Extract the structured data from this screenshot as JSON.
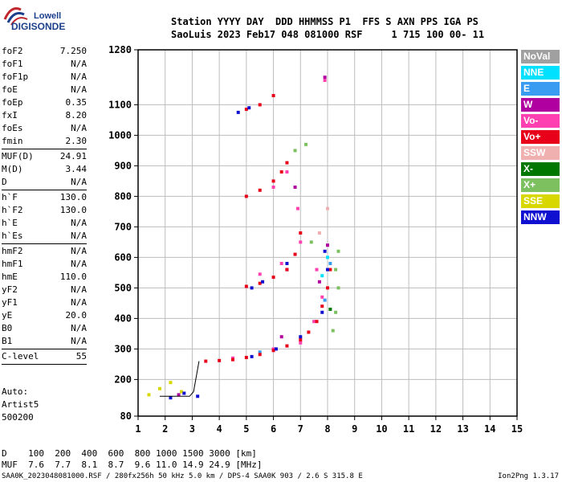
{
  "logo": {
    "line1": "Lowell",
    "line2": "DIGISONDE"
  },
  "header": {
    "line1": "Station YYYY DAY  DDD HHMMSS P1  FFS S AXN PPS IGA PS",
    "line2": "SaoLuis 2023 Feb17 048 081000 RSF     1 715 100 00- 11"
  },
  "params": [
    {
      "k": "foF2",
      "v": "7.250"
    },
    {
      "k": "foF1",
      "v": "N/A"
    },
    {
      "k": "foF1p",
      "v": "N/A"
    },
    {
      "k": "foE",
      "v": "N/A"
    },
    {
      "k": "foEp",
      "v": "0.35"
    },
    {
      "k": "fxI",
      "v": "8.20"
    },
    {
      "k": "foEs",
      "v": "N/A"
    },
    {
      "k": "fmin",
      "v": "2.30"
    },
    {
      "sep": true
    },
    {
      "k": "MUF(D)",
      "v": "24.91"
    },
    {
      "k": "M(D)",
      "v": "3.44"
    },
    {
      "k": "D",
      "v": "N/A"
    },
    {
      "sep": true
    },
    {
      "k": "h`F",
      "v": "130.0"
    },
    {
      "k": "h`F2",
      "v": "130.0"
    },
    {
      "k": "h`E",
      "v": "N/A"
    },
    {
      "k": "h`Es",
      "v": "N/A"
    },
    {
      "sep": true
    },
    {
      "k": "hmF2",
      "v": "N/A"
    },
    {
      "k": "hmF1",
      "v": "N/A"
    },
    {
      "k": "hmE",
      "v": "110.0"
    },
    {
      "k": "yF2",
      "v": "N/A"
    },
    {
      "k": "yF1",
      "v": "N/A"
    },
    {
      "k": "yE",
      "v": "20.0"
    },
    {
      "k": "B0",
      "v": "N/A"
    },
    {
      "k": "B1",
      "v": "N/A"
    },
    {
      "sep": true
    },
    {
      "k": "C-level",
      "v": "55"
    },
    {
      "sep": true
    }
  ],
  "auto": {
    "line1": "Auto:",
    "line2": "Artist5",
    "line3": "500200"
  },
  "legend": [
    {
      "label": "NoVal",
      "color": "#a0a0a0"
    },
    {
      "label": "NNE",
      "color": "#00e0ff"
    },
    {
      "label": "E",
      "color": "#3a9cf0"
    },
    {
      "label": "W",
      "color": "#b000a0"
    },
    {
      "label": "Vo-",
      "color": "#ff40b0"
    },
    {
      "label": "Vo+",
      "color": "#e8001a"
    },
    {
      "label": "SSW",
      "color": "#f0b0b0"
    },
    {
      "label": "X-",
      "color": "#007800"
    },
    {
      "label": "X+",
      "color": "#7cc060"
    },
    {
      "label": "SSE",
      "color": "#d8d800"
    },
    {
      "label": "NNW",
      "color": "#1010d0"
    }
  ],
  "muf": {
    "line1": "D    100  200  400  600  800 1000 1500 3000 [km]",
    "line2": "MUF  7.6  7.7  8.1  8.7  9.6 11.0 14.9 24.9 [MHz]"
  },
  "footer": "SAA0K_2023048081000.RSF / 280fx256h 50 kHz 5.0 km / DPS-4 SAA0K 903 / 2.6 S 315.8 E",
  "version": "Ion2Png 1.3.17",
  "chart_data": {
    "type": "scatter",
    "title": "",
    "xlabel": "",
    "ylabel": "",
    "xlim": [
      1,
      15
    ],
    "ylim": [
      80,
      1280
    ],
    "xticks": [
      1,
      2,
      3,
      4,
      5,
      6,
      7,
      8,
      9,
      10,
      11,
      12,
      13,
      14,
      15
    ],
    "yticks": [
      80,
      200,
      300,
      400,
      500,
      600,
      700,
      800,
      900,
      1000,
      1100,
      1280
    ],
    "grid": true,
    "legend_position": "right",
    "series": [
      {
        "name": "NoVal",
        "color": "#a0a0a0",
        "x": [],
        "y": []
      },
      {
        "name": "NNE",
        "color": "#00e0ff",
        "x": [
          7.8,
          8.0
        ],
        "y": [
          540,
          600
        ]
      },
      {
        "name": "E",
        "color": "#3a9cf0",
        "x": [
          7.9,
          8.1,
          5.5
        ],
        "y": [
          460,
          580,
          290
        ]
      },
      {
        "name": "W",
        "color": "#b000a0",
        "x": [
          2.5,
          6.5,
          7.7,
          8.0,
          6.8,
          7.9,
          6.3
        ],
        "y": [
          150,
          560,
          520,
          640,
          830,
          1190,
          340
        ]
      },
      {
        "name": "Vo-",
        "color": "#ff40b0",
        "x": [
          4.5,
          6.0,
          7.0,
          7.5,
          7.8,
          5.5,
          6.3,
          7.0,
          6.0,
          6.5,
          7.6,
          6.9,
          7.9
        ],
        "y": [
          270,
          300,
          320,
          390,
          470,
          545,
          580,
          650,
          830,
          880,
          560,
          760,
          1180
        ]
      },
      {
        "name": "Vo+",
        "color": "#e8001a",
        "x": [
          3.5,
          4.0,
          4.5,
          5.0,
          5.5,
          6.0,
          6.5,
          7.0,
          7.3,
          7.6,
          7.8,
          8.0,
          8.1,
          5.0,
          5.5,
          6.0,
          6.5,
          6.8,
          7.0,
          5.0,
          5.5,
          6.0,
          6.3,
          6.5,
          5.0,
          5.5,
          6.0
        ],
        "y": [
          260,
          262,
          265,
          272,
          282,
          295,
          310,
          330,
          355,
          390,
          440,
          500,
          560,
          505,
          515,
          535,
          560,
          610,
          680,
          800,
          820,
          850,
          880,
          910,
          1085,
          1100,
          1130
        ]
      },
      {
        "name": "SSW",
        "color": "#f0b0b0",
        "x": [
          7.7,
          8.0
        ],
        "y": [
          680,
          760
        ]
      },
      {
        "name": "X-",
        "color": "#007800",
        "x": [
          8.1
        ],
        "y": [
          430
        ]
      },
      {
        "name": "X+",
        "color": "#7cc060",
        "x": [
          8.2,
          8.3,
          8.4,
          8.3,
          8.4,
          7.4,
          6.8,
          7.2
        ],
        "y": [
          360,
          420,
          500,
          560,
          620,
          650,
          950,
          970
        ]
      },
      {
        "name": "SSE",
        "color": "#d8d800",
        "x": [
          1.4,
          1.8,
          2.2,
          2.6
        ],
        "y": [
          150,
          170,
          190,
          160
        ]
      },
      {
        "name": "NNW",
        "color": "#1010d0",
        "x": [
          2.2,
          2.7,
          3.2,
          5.2,
          6.1,
          7.0,
          7.8,
          8.0,
          7.9,
          5.2,
          5.6,
          6.5,
          4.7,
          5.1
        ],
        "y": [
          140,
          155,
          145,
          275,
          300,
          340,
          420,
          560,
          620,
          500,
          520,
          580,
          1075,
          1090
        ]
      }
    ],
    "trace": {
      "x": [
        1.8,
        2.2,
        2.6,
        2.9,
        3.05,
        3.25
      ],
      "y": [
        145,
        145,
        145,
        145,
        160,
        260
      ]
    }
  }
}
